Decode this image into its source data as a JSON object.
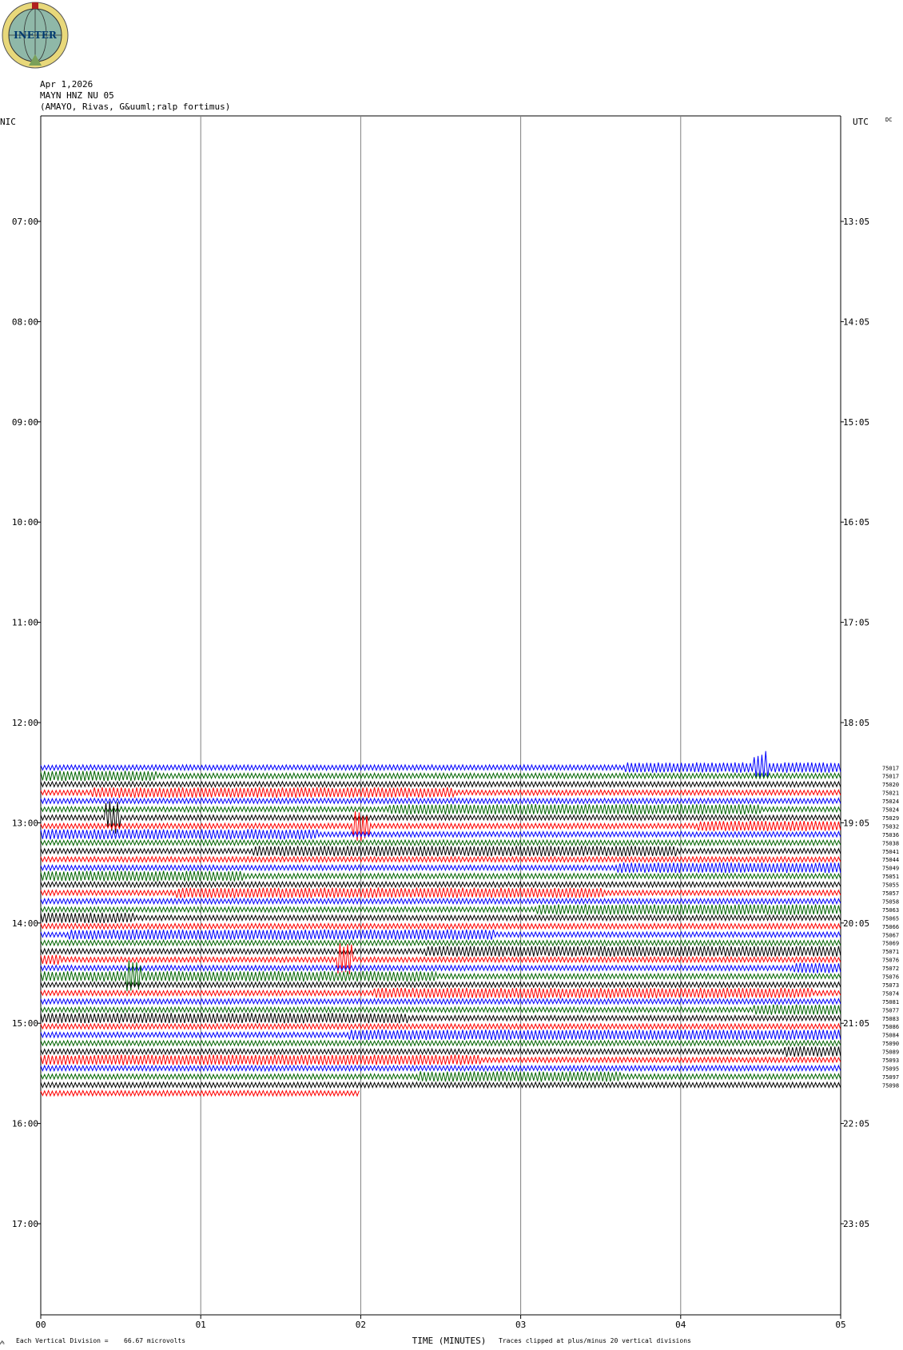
{
  "header": {
    "logo_text": "INETER",
    "date": "Apr 1,2026",
    "station": "MAYN HNZ NU 05",
    "location": "(AMAYO, Rivas, G&uuml;ralp fortimus)"
  },
  "left_axis_title": "NIC",
  "right_axis_title": "UTC",
  "right_axis_note": "DC",
  "left_time_labels": [
    "07:00",
    "08:00",
    "09:00",
    "10:00",
    "11:00",
    "12:00",
    "13:00",
    "14:00",
    "15:00",
    "16:00",
    "17:00"
  ],
  "right_time_labels": [
    "13:05",
    "14:05",
    "15:05",
    "16:05",
    "17:05",
    "18:05",
    "19:05",
    "20:05",
    "21:05",
    "22:05",
    "23:05"
  ],
  "x_tick_labels": [
    "00",
    "01",
    "02",
    "03",
    "04",
    "05"
  ],
  "x_axis_title": "TIME (MINUTES)",
  "footer_left": "Each Vertical Division =",
  "footer_scale": "66.67 microvolts",
  "footer_right": "Traces clipped at plus/minus 20 vertical divisions",
  "trace_ids": [
    "75017",
    "75017",
    "75020",
    "75021",
    "75024",
    "75024",
    "75029",
    "75032",
    "75036",
    "75038",
    "75041",
    "75044",
    "75049",
    "75051",
    "75055",
    "75057",
    "75058",
    "75063",
    "75065",
    "75066",
    "75067",
    "75069",
    "75071",
    "75076",
    "75072",
    "75076",
    "75073",
    "75074",
    "75081",
    "75077",
    "75083",
    "75086",
    "75084",
    "75090",
    "75089",
    "75093",
    "75095",
    "75097",
    "75098"
  ],
  "colors": {
    "black": "#000000",
    "red": "#ff0000",
    "blue": "#0000ff",
    "green": "#006400",
    "grid": "#808080"
  },
  "chart_data": {
    "type": "line",
    "title": "MAYN HNZ NU 05",
    "xlabel": "TIME (MINUTES)",
    "x_range": [
      0,
      5
    ],
    "rows_start_nic": "06:05",
    "row_interval_minutes": 5,
    "first_trace_row": 77,
    "trace_color_cycle": [
      "blue",
      "green",
      "black",
      "red"
    ],
    "series": [
      {
        "row": 77,
        "color": "blue",
        "bursts": [
          [
            3.65,
            5.0
          ]
        ],
        "event_at": 4.5
      },
      {
        "row": 78,
        "color": "green",
        "bursts": [
          [
            0.0,
            0.72
          ]
        ]
      },
      {
        "row": 79,
        "color": "black",
        "bursts": []
      },
      {
        "row": 80,
        "color": "red",
        "bursts": [
          [
            0.32,
            2.58
          ]
        ]
      },
      {
        "row": 81,
        "color": "blue",
        "bursts": []
      },
      {
        "row": 82,
        "color": "green",
        "bursts": [
          [
            2.18,
            4.5
          ]
        ]
      },
      {
        "row": 83,
        "color": "black",
        "bursts": [],
        "event_at": 0.45
      },
      {
        "row": 84,
        "color": "red",
        "bursts": [
          [
            4.1,
            5.0
          ]
        ],
        "event_at": 2.0
      },
      {
        "row": 85,
        "color": "blue",
        "bursts": [
          [
            0.0,
            1.73
          ]
        ]
      },
      {
        "row": 86,
        "color": "green",
        "bursts": []
      },
      {
        "row": 87,
        "color": "black",
        "bursts": [
          [
            1.33,
            3.98
          ]
        ]
      },
      {
        "row": 88,
        "color": "red",
        "bursts": []
      },
      {
        "row": 89,
        "color": "blue",
        "bursts": [
          [
            3.6,
            5.0
          ]
        ]
      },
      {
        "row": 90,
        "color": "green",
        "bursts": [
          [
            0.0,
            1.26
          ]
        ]
      },
      {
        "row": 91,
        "color": "black",
        "bursts": []
      },
      {
        "row": 92,
        "color": "red",
        "bursts": [
          [
            0.85,
            3.52
          ]
        ]
      },
      {
        "row": 93,
        "color": "blue",
        "bursts": []
      },
      {
        "row": 94,
        "color": "green",
        "bursts": [
          [
            3.1,
            5.0
          ]
        ]
      },
      {
        "row": 95,
        "color": "black",
        "bursts": [
          [
            0.0,
            0.58
          ]
        ]
      },
      {
        "row": 96,
        "color": "red",
        "bursts": []
      },
      {
        "row": 97,
        "color": "blue",
        "bursts": [
          [
            0.17,
            2.83
          ]
        ]
      },
      {
        "row": 98,
        "color": "green",
        "bursts": []
      },
      {
        "row": 99,
        "color": "black",
        "bursts": [
          [
            2.4,
            5.0
          ]
        ]
      },
      {
        "row": 100,
        "color": "red",
        "bursts": [
          [
            0.0,
            0.12
          ]
        ],
        "event_at": 1.9
      },
      {
        "row": 101,
        "color": "blue",
        "bursts": [
          [
            4.7,
            5.0
          ]
        ]
      },
      {
        "row": 102,
        "color": "green",
        "bursts": [
          [
            0.0,
            2.48
          ]
        ],
        "event_at": 0.58
      },
      {
        "row": 103,
        "color": "black",
        "bursts": []
      },
      {
        "row": 104,
        "color": "red",
        "bursts": [
          [
            2.08,
            4.83
          ]
        ]
      },
      {
        "row": 105,
        "color": "blue",
        "bursts": []
      },
      {
        "row": 106,
        "color": "green",
        "bursts": [
          [
            4.45,
            5.0
          ]
        ]
      },
      {
        "row": 107,
        "color": "black",
        "bursts": [
          [
            0.0,
            2.3
          ]
        ]
      },
      {
        "row": 108,
        "color": "red",
        "bursts": []
      },
      {
        "row": 109,
        "color": "blue",
        "bursts": [
          [
            1.93,
            5.0
          ]
        ]
      },
      {
        "row": 110,
        "color": "green",
        "bursts": []
      },
      {
        "row": 111,
        "color": "black",
        "bursts": [
          [
            4.65,
            5.0
          ]
        ]
      },
      {
        "row": 112,
        "color": "red",
        "bursts": [
          [
            0.0,
            2.75
          ]
        ]
      },
      {
        "row": 113,
        "color": "blue",
        "bursts": []
      },
      {
        "row": 114,
        "color": "green",
        "bursts": [
          [
            2.35,
            3.63
          ]
        ]
      },
      {
        "row": 115,
        "color": "black",
        "bursts": []
      },
      {
        "row": 116,
        "color": "red",
        "bursts": [],
        "end": 2.0
      }
    ]
  }
}
